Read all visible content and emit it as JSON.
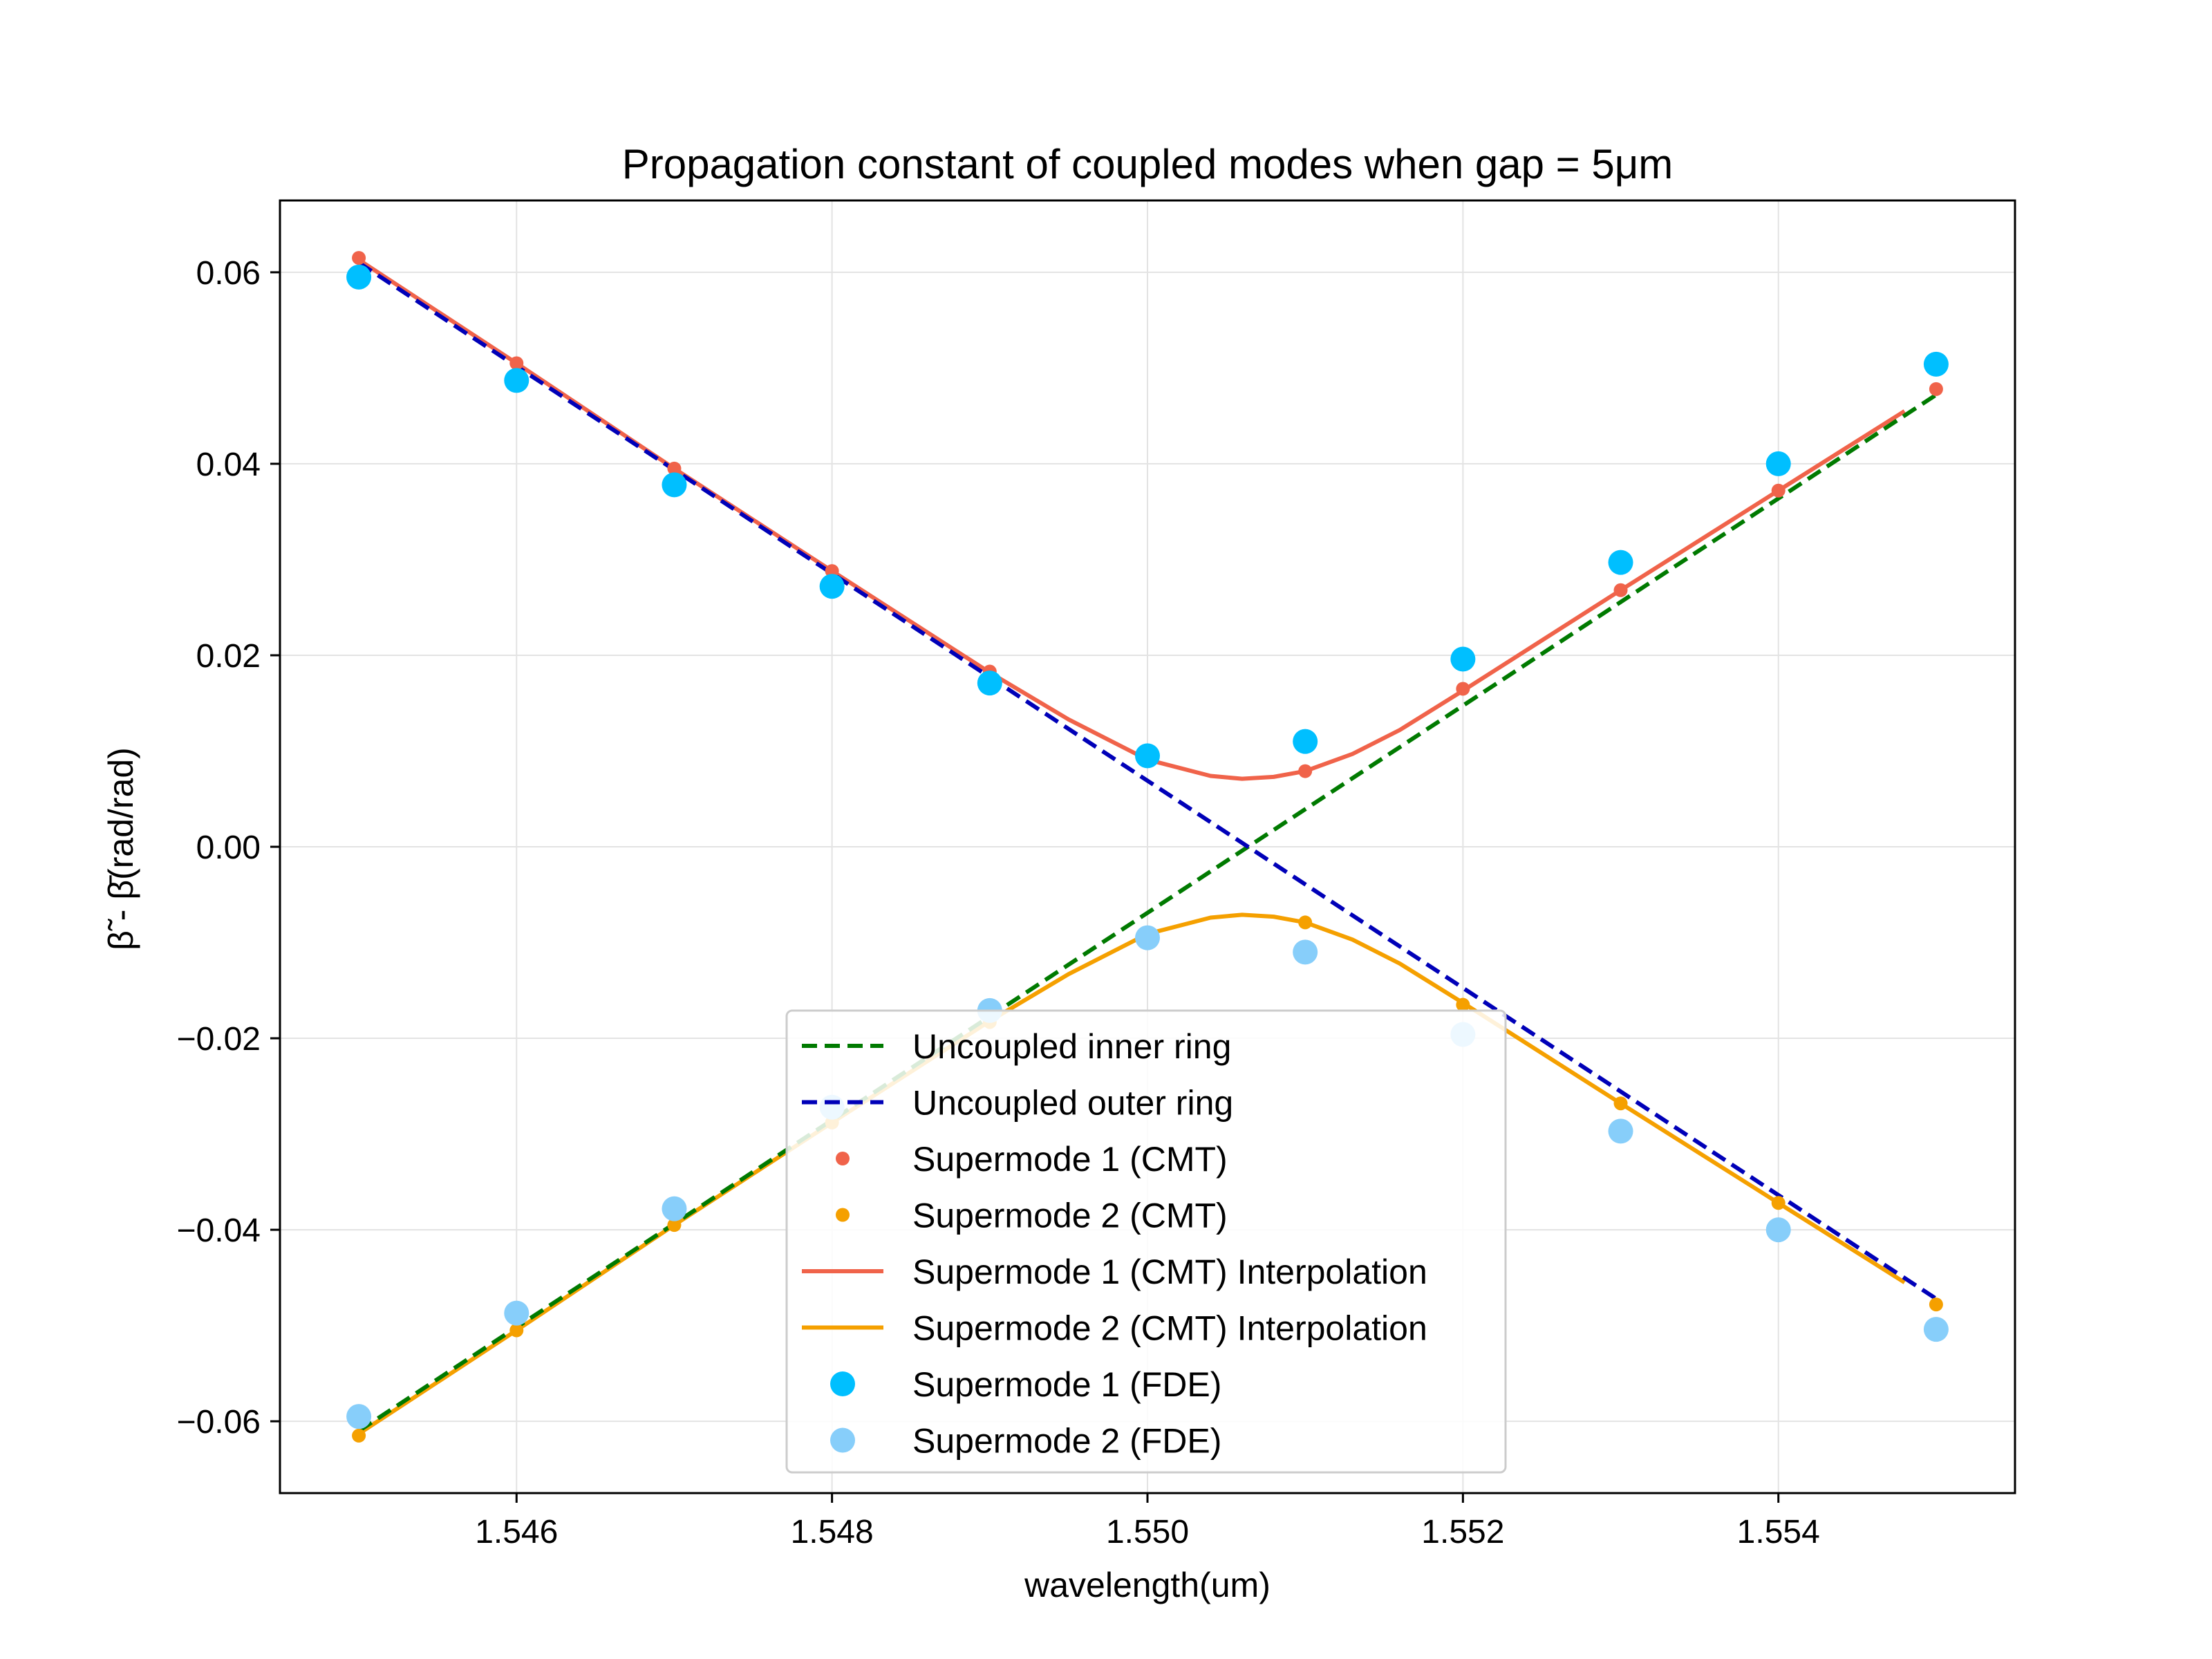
{
  "chart_data": {
    "type": "line",
    "title": "Propagation constant of coupled modes when gap = 5μm",
    "xlabel": "wavelength(um)",
    "ylabel": "β̃ - β̄(rad/rad)",
    "xlim": [
      1.5445,
      1.5555
    ],
    "ylim": [
      -0.0675,
      0.0675
    ],
    "xticks": [
      1.546,
      1.548,
      1.55,
      1.552,
      1.554
    ],
    "xtick_labels": [
      "1.546",
      "1.548",
      "1.550",
      "1.552",
      "1.554"
    ],
    "yticks": [
      -0.06,
      -0.04,
      -0.02,
      0.0,
      0.02,
      0.04,
      0.06
    ],
    "ytick_labels": [
      "−0.06",
      "−0.04",
      "−0.02",
      "0.00",
      "0.02",
      "0.04",
      "0.06"
    ],
    "grid": true,
    "legend_position": "lower-center",
    "series": [
      {
        "name": "Uncoupled inner ring",
        "kind": "dashed-line",
        "color": "#007a00",
        "x": [
          1.545,
          1.555
        ],
        "y": [
          -0.061,
          0.0472
        ]
      },
      {
        "name": "Uncoupled outer ring",
        "kind": "dashed-line",
        "color": "#0000b8",
        "x": [
          1.545,
          1.555
        ],
        "y": [
          0.061,
          -0.0472
        ]
      },
      {
        "name": "Supermode 1 (CMT)",
        "kind": "small-dots",
        "color": "#f0634a",
        "x": [
          1.545,
          1.546,
          1.547,
          1.548,
          1.549,
          1.55,
          1.551,
          1.552,
          1.553,
          1.554,
          1.555
        ],
        "y": [
          0.0615,
          0.0505,
          0.0395,
          0.0288,
          0.0183,
          0.0093,
          0.0079,
          0.0165,
          0.0268,
          0.0372,
          0.0478
        ]
      },
      {
        "name": "Supermode 2 (CMT)",
        "kind": "small-dots",
        "color": "#f5a000",
        "x": [
          1.545,
          1.546,
          1.547,
          1.548,
          1.549,
          1.55,
          1.551,
          1.552,
          1.553,
          1.554,
          1.555
        ],
        "y": [
          -0.0615,
          -0.0505,
          -0.0395,
          -0.0288,
          -0.0183,
          -0.0093,
          -0.0079,
          -0.0165,
          -0.0268,
          -0.0372,
          -0.0478
        ]
      },
      {
        "name": "Supermode 1 (CMT) Interpolation",
        "kind": "solid-line",
        "color": "#f0634a",
        "x": [
          1.545,
          1.546,
          1.547,
          1.548,
          1.549,
          1.5495,
          1.55,
          1.5504,
          1.5506,
          1.5508,
          1.551,
          1.5513,
          1.5516,
          1.552,
          1.553,
          1.554,
          1.5548
        ],
        "y": [
          0.0613,
          0.0505,
          0.0395,
          0.0288,
          0.0182,
          0.0133,
          0.0091,
          0.0074,
          0.0071,
          0.0073,
          0.0079,
          0.0097,
          0.0122,
          0.0163,
          0.0268,
          0.0372,
          0.0455
        ]
      },
      {
        "name": "Supermode 2 (CMT) Interpolation",
        "kind": "solid-line",
        "color": "#f5a000",
        "x": [
          1.545,
          1.546,
          1.547,
          1.548,
          1.549,
          1.5495,
          1.55,
          1.5504,
          1.5506,
          1.5508,
          1.551,
          1.5513,
          1.5516,
          1.552,
          1.553,
          1.554,
          1.5548
        ],
        "y": [
          -0.0613,
          -0.0505,
          -0.0395,
          -0.0288,
          -0.0182,
          -0.0133,
          -0.0091,
          -0.0074,
          -0.0071,
          -0.0073,
          -0.0079,
          -0.0097,
          -0.0122,
          -0.0163,
          -0.0268,
          -0.0372,
          -0.0455
        ]
      },
      {
        "name": "Supermode 1 (FDE)",
        "kind": "large-dots",
        "color": "#00bfff",
        "x": [
          1.545,
          1.546,
          1.547,
          1.548,
          1.549,
          1.55,
          1.551,
          1.552,
          1.553,
          1.554,
          1.555
        ],
        "y": [
          0.0595,
          0.0487,
          0.0378,
          0.0272,
          0.0171,
          0.0095,
          0.011,
          0.0196,
          0.0297,
          0.04,
          0.0504
        ]
      },
      {
        "name": "Supermode 2 (FDE)",
        "kind": "large-dots",
        "color": "#87cefa",
        "x": [
          1.545,
          1.546,
          1.547,
          1.548,
          1.549,
          1.55,
          1.551,
          1.552,
          1.553,
          1.554,
          1.555
        ],
        "y": [
          -0.0595,
          -0.0487,
          -0.0378,
          -0.0272,
          -0.0171,
          -0.0095,
          -0.011,
          -0.0196,
          -0.0297,
          -0.04,
          -0.0504
        ]
      }
    ]
  }
}
